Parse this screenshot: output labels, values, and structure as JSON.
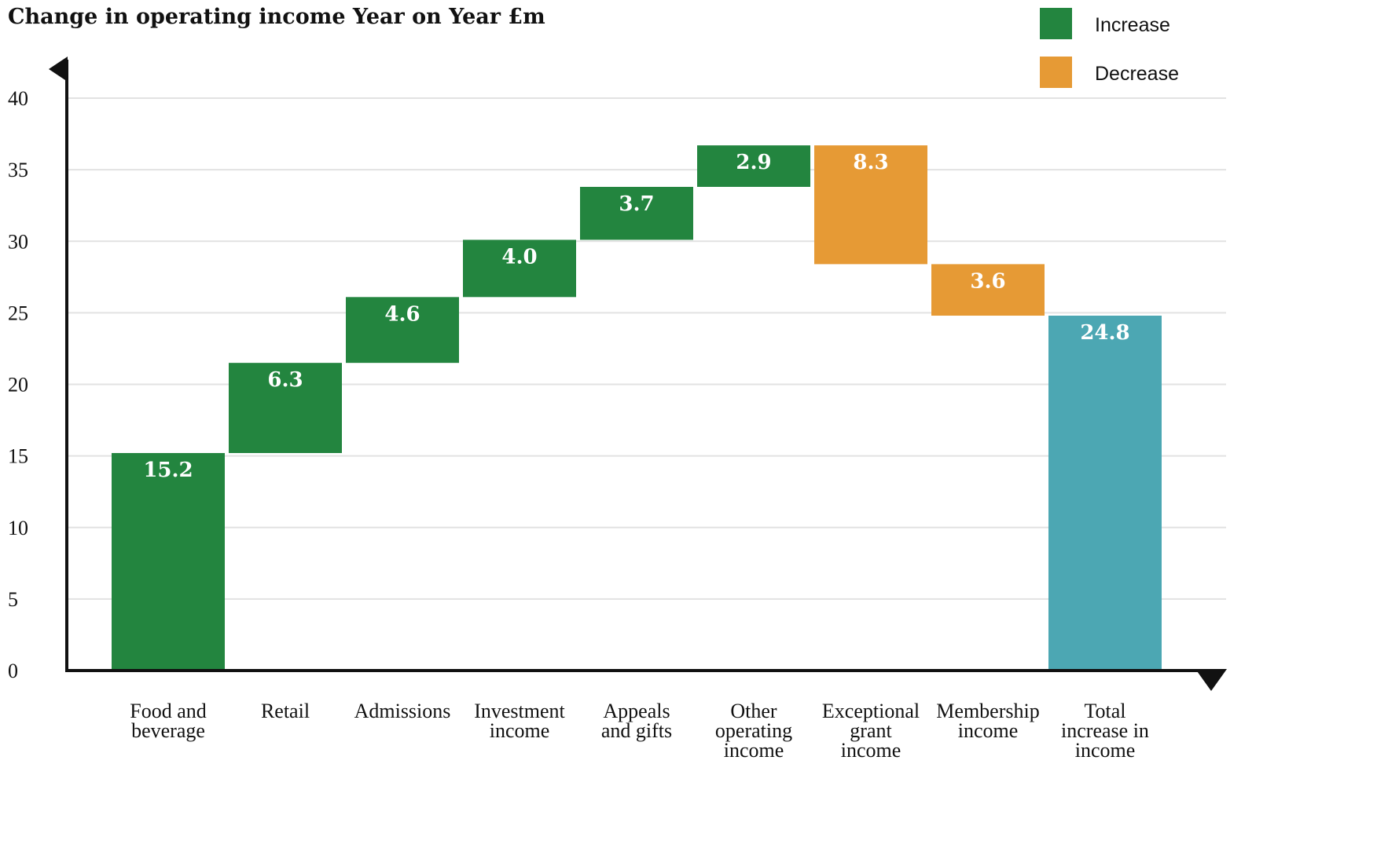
{
  "chart_data": {
    "type": "waterfall",
    "title": "Change in operating income Year on Year £m",
    "ylim": [
      0,
      40
    ],
    "yticks": [
      0,
      5,
      10,
      15,
      20,
      25,
      30,
      35,
      40
    ],
    "grid": true,
    "legend_position": "top-right",
    "legend": [
      {
        "label": "Increase",
        "color": "#23853f"
      },
      {
        "label": "Decrease",
        "color": "#e69a35"
      }
    ],
    "total_color": "#4ca7b3",
    "bars": [
      {
        "category": [
          "Food and",
          "beverage"
        ],
        "value": 15.2,
        "label": "15.2",
        "kind": "increase"
      },
      {
        "category": [
          "Retail"
        ],
        "value": 6.3,
        "label": "6.3",
        "kind": "increase"
      },
      {
        "category": [
          "Admissions"
        ],
        "value": 4.6,
        "label": "4.6",
        "kind": "increase"
      },
      {
        "category": [
          "Investment",
          "income"
        ],
        "value": 4.0,
        "label": "4.0",
        "kind": "increase"
      },
      {
        "category": [
          "Appeals",
          "and gifts"
        ],
        "value": 3.7,
        "label": "3.7",
        "kind": "increase"
      },
      {
        "category": [
          "Other",
          "operating",
          "income"
        ],
        "value": 2.9,
        "label": "2.9",
        "kind": "increase"
      },
      {
        "category": [
          "Exceptional",
          "grant",
          "income"
        ],
        "value": -8.3,
        "label": "8.3",
        "kind": "decrease"
      },
      {
        "category": [
          "Membership",
          "income"
        ],
        "value": -3.6,
        "label": "3.6",
        "kind": "decrease"
      },
      {
        "category": [
          "Total",
          "increase in",
          "income"
        ],
        "value": 24.8,
        "label": "24.8",
        "kind": "total"
      }
    ]
  }
}
